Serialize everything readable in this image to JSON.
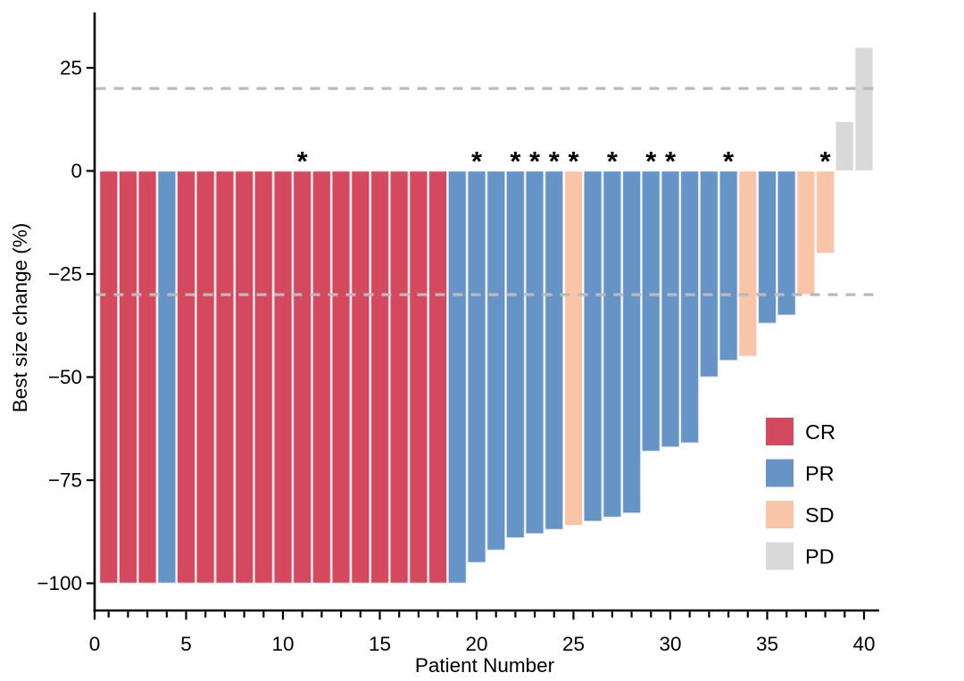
{
  "chart_data": {
    "type": "bar",
    "subtype": "waterfall-tumor-response",
    "title": "",
    "xlabel": "Patient Number",
    "ylabel": "Best size change (%)",
    "xlim": [
      0,
      40.5
    ],
    "ylim": [
      -107,
      38
    ],
    "grid": false,
    "reference_lines": [
      20,
      -30
    ],
    "reference_line_color": "#bbbbbb",
    "legend_position": "inside-right",
    "legend": [
      {
        "label": "CR",
        "color": "#d4495e"
      },
      {
        "label": "PR",
        "color": "#6794c7"
      },
      {
        "label": "SD",
        "color": "#f8c5a9"
      },
      {
        "label": "PD",
        "color": "#d9d9d9"
      }
    ],
    "x_tick_labels": [
      {
        "value": 0,
        "label": "0"
      },
      {
        "value": 5,
        "label": "5"
      },
      {
        "value": 10,
        "label": "10"
      },
      {
        "value": 15,
        "label": "15"
      },
      {
        "value": 20,
        "label": "20"
      },
      {
        "value": 25,
        "label": "25"
      },
      {
        "value": 30,
        "label": "30"
      },
      {
        "value": 35,
        "label": "35"
      },
      {
        "value": 40,
        "label": "40"
      }
    ],
    "y_tick_labels": [
      {
        "value": 25,
        "label": "25"
      },
      {
        "value": 0,
        "label": "0"
      },
      {
        "value": -25,
        "label": "−25"
      },
      {
        "value": -50,
        "label": "−50"
      },
      {
        "value": -75,
        "label": "−75"
      },
      {
        "value": -100,
        "label": "−100"
      }
    ],
    "asterisk_glyph": "*",
    "patients": [
      {
        "n": 1,
        "response": "CR",
        "value": -100,
        "asterisk": false
      },
      {
        "n": 2,
        "response": "CR",
        "value": -100,
        "asterisk": false
      },
      {
        "n": 3,
        "response": "CR",
        "value": -100,
        "asterisk": false
      },
      {
        "n": 4,
        "response": "PR",
        "value": -100,
        "asterisk": false
      },
      {
        "n": 5,
        "response": "CR",
        "value": -100,
        "asterisk": false
      },
      {
        "n": 6,
        "response": "CR",
        "value": -100,
        "asterisk": false
      },
      {
        "n": 7,
        "response": "CR",
        "value": -100,
        "asterisk": false
      },
      {
        "n": 8,
        "response": "CR",
        "value": -100,
        "asterisk": false
      },
      {
        "n": 9,
        "response": "CR",
        "value": -100,
        "asterisk": false
      },
      {
        "n": 10,
        "response": "CR",
        "value": -100,
        "asterisk": false
      },
      {
        "n": 11,
        "response": "CR",
        "value": -100,
        "asterisk": true
      },
      {
        "n": 12,
        "response": "CR",
        "value": -100,
        "asterisk": false
      },
      {
        "n": 13,
        "response": "CR",
        "value": -100,
        "asterisk": false
      },
      {
        "n": 14,
        "response": "CR",
        "value": -100,
        "asterisk": false
      },
      {
        "n": 15,
        "response": "CR",
        "value": -100,
        "asterisk": false
      },
      {
        "n": 16,
        "response": "CR",
        "value": -100,
        "asterisk": false
      },
      {
        "n": 17,
        "response": "CR",
        "value": -100,
        "asterisk": false
      },
      {
        "n": 18,
        "response": "CR",
        "value": -100,
        "asterisk": false
      },
      {
        "n": 19,
        "response": "PR",
        "value": -100,
        "asterisk": false
      },
      {
        "n": 20,
        "response": "PR",
        "value": -95,
        "asterisk": true
      },
      {
        "n": 21,
        "response": "PR",
        "value": -92,
        "asterisk": false
      },
      {
        "n": 22,
        "response": "PR",
        "value": -89,
        "asterisk": true
      },
      {
        "n": 23,
        "response": "PR",
        "value": -88,
        "asterisk": true
      },
      {
        "n": 24,
        "response": "PR",
        "value": -87,
        "asterisk": true
      },
      {
        "n": 25,
        "response": "SD",
        "value": -86,
        "asterisk": true
      },
      {
        "n": 26,
        "response": "PR",
        "value": -85,
        "asterisk": false
      },
      {
        "n": 27,
        "response": "PR",
        "value": -84,
        "asterisk": true
      },
      {
        "n": 28,
        "response": "PR",
        "value": -83,
        "asterisk": false
      },
      {
        "n": 29,
        "response": "PR",
        "value": -68,
        "asterisk": true
      },
      {
        "n": 30,
        "response": "PR",
        "value": -67,
        "asterisk": true
      },
      {
        "n": 31,
        "response": "PR",
        "value": -66,
        "asterisk": false
      },
      {
        "n": 32,
        "response": "PR",
        "value": -50,
        "asterisk": false
      },
      {
        "n": 33,
        "response": "PR",
        "value": -46,
        "asterisk": true
      },
      {
        "n": 34,
        "response": "SD",
        "value": -45,
        "asterisk": false
      },
      {
        "n": 35,
        "response": "PR",
        "value": -37,
        "asterisk": false
      },
      {
        "n": 36,
        "response": "PR",
        "value": -35,
        "asterisk": false
      },
      {
        "n": 37,
        "response": "SD",
        "value": -30,
        "asterisk": false
      },
      {
        "n": 38,
        "response": "SD",
        "value": -20,
        "asterisk": true
      },
      {
        "n": 39,
        "response": "PD",
        "value": 12,
        "asterisk": false
      },
      {
        "n": 40,
        "response": "PD",
        "value": 30,
        "asterisk": false
      }
    ],
    "colors": {
      "axis": "#000000",
      "bar_edge": "#ffffff",
      "background": "#ffffff"
    }
  }
}
